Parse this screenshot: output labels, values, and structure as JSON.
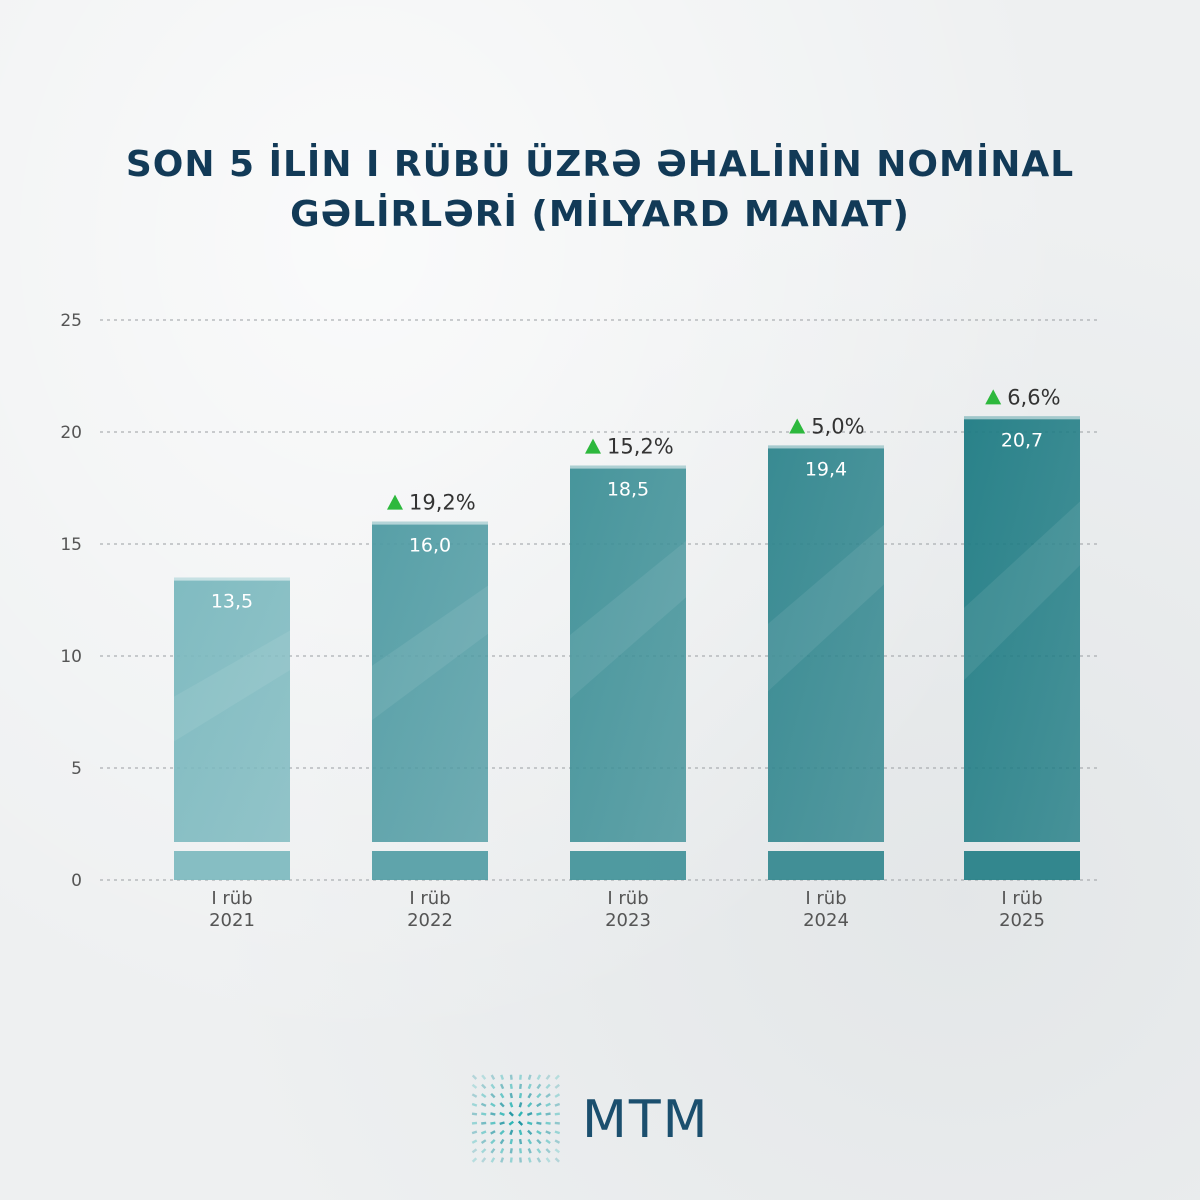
{
  "title_line1": "SON 5 İLİN I RÜBÜ ÜZRƏ ƏHALİNİN NOMİNAL",
  "title_line2": "GƏLİRLƏRİ (MİLYARD MANAT)",
  "brand": "MTM",
  "logo_icon": "mtm-logo-icon",
  "chart_data": {
    "type": "bar",
    "title": "SON 5 İLİN I RÜBÜ ÜZRƏ ƏHALİNİN NOMİNAL GƏLİRLƏRİ (MİLYARD MANAT)",
    "categories": [
      [
        "I rüb",
        "2021"
      ],
      [
        "I rüb",
        "2022"
      ],
      [
        "I rüb",
        "2023"
      ],
      [
        "I rüb",
        "2024"
      ],
      [
        "I rüb",
        "2025"
      ]
    ],
    "values": [
      13.5,
      16.0,
      18.5,
      19.4,
      20.7
    ],
    "value_labels": [
      "13,5",
      "16,0",
      "18,5",
      "19,4",
      "20,7"
    ],
    "growth_labels": [
      "",
      "19,2%",
      "15,2%",
      "5,0%",
      "6,6%"
    ],
    "yticks": [
      0,
      5,
      10,
      15,
      20,
      25
    ],
    "ylim": [
      0,
      25
    ],
    "grid": true,
    "colors": [
      "#7ab8be",
      "#4f9ba3",
      "#3e9097",
      "#2f858d",
      "#1f7c84"
    ],
    "growth_color": "#2db83d",
    "axis_color": "#555555"
  }
}
